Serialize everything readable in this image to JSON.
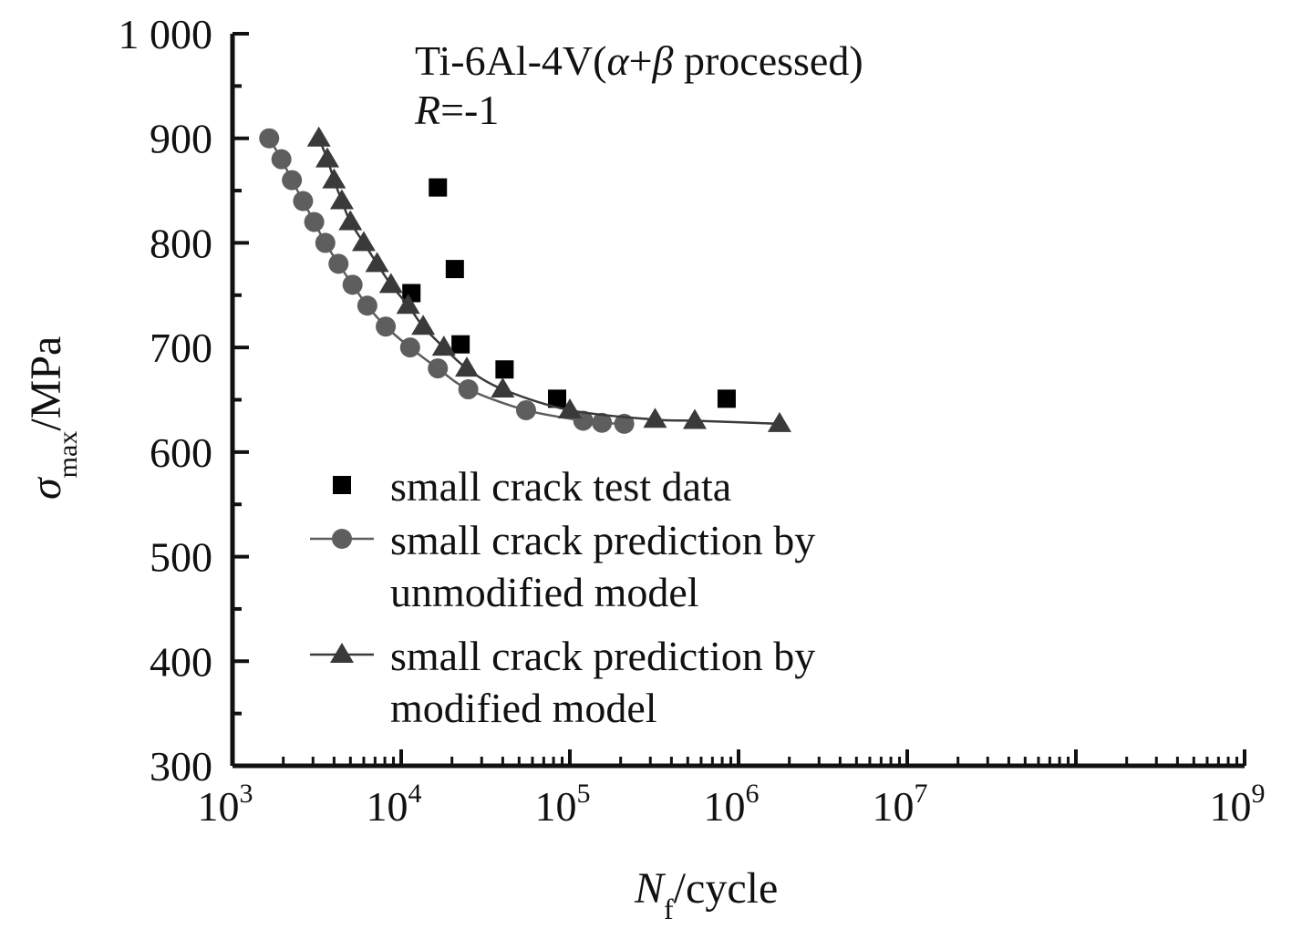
{
  "chart_data": {
    "type": "scatter",
    "title": "",
    "xlabel": {
      "main": "N",
      "sub": "f",
      "unit": "/cycle"
    },
    "ylabel": {
      "main": "σ",
      "sub": "max",
      "unit": "/MPa"
    },
    "xscale": "log",
    "xlim": [
      1000,
      1000000000
    ],
    "ylim": [
      300,
      1000
    ],
    "x_ticks": [
      {
        "base": "10",
        "exp": "3",
        "value": 1000
      },
      {
        "base": "10",
        "exp": "4",
        "value": 10000
      },
      {
        "base": "10",
        "exp": "5",
        "value": 100000
      },
      {
        "base": "10",
        "exp": "6",
        "value": 1000000
      },
      {
        "base": "10",
        "exp": "7",
        "value": 10000000
      },
      {
        "base": "10",
        "exp": "9",
        "value": 1000000000
      }
    ],
    "y_ticks": [
      {
        "label": "300",
        "value": 300
      },
      {
        "label": "400",
        "value": 400
      },
      {
        "label": "500",
        "value": 500
      },
      {
        "label": "600",
        "value": 600
      },
      {
        "label": "700",
        "value": 700
      },
      {
        "label": "800",
        "value": 800
      },
      {
        "label": "900",
        "value": 900
      },
      {
        "label": "1 000",
        "value": 1000
      }
    ],
    "annotations": {
      "material_prefix": "Ti-6Al-4V(",
      "alpha": "α",
      "plus": "+",
      "beta": "β",
      "material_suffix": " processed)",
      "ratio_symbol": "R",
      "ratio_value": "=-1"
    },
    "legend": {
      "position": "center-left",
      "entries": [
        {
          "lines": [
            "small crack test data"
          ],
          "marker": "square",
          "line": false
        },
        {
          "lines": [
            "small crack prediction by",
            "unmodified model"
          ],
          "marker": "circle",
          "line": true
        },
        {
          "lines": [
            "small crack prediction by",
            "modified model"
          ],
          "marker": "triangle",
          "line": true
        }
      ]
    },
    "series": [
      {
        "name": "small crack test data",
        "marker": "square",
        "color": "#000000",
        "points": [
          {
            "x": 11500,
            "y": 752
          },
          {
            "x": 16500,
            "y": 853
          },
          {
            "x": 20800,
            "y": 775
          },
          {
            "x": 22500,
            "y": 703
          },
          {
            "x": 41000,
            "y": 679
          },
          {
            "x": 84000,
            "y": 651
          },
          {
            "x": 850000,
            "y": 651
          }
        ]
      },
      {
        "name": "small crack prediction by unmodified model",
        "marker": "circle",
        "color": "#5e5e5e",
        "points": [
          {
            "x": 1650,
            "y": 900
          },
          {
            "x": 1950,
            "y": 880
          },
          {
            "x": 2250,
            "y": 860
          },
          {
            "x": 2620,
            "y": 840
          },
          {
            "x": 3050,
            "y": 820
          },
          {
            "x": 3550,
            "y": 800
          },
          {
            "x": 4250,
            "y": 780
          },
          {
            "x": 5150,
            "y": 760
          },
          {
            "x": 6300,
            "y": 740
          },
          {
            "x": 8100,
            "y": 720
          },
          {
            "x": 11300,
            "y": 700
          },
          {
            "x": 16500,
            "y": 680
          },
          {
            "x": 25000,
            "y": 660
          },
          {
            "x": 55000,
            "y": 640
          },
          {
            "x": 120000,
            "y": 630
          },
          {
            "x": 155000,
            "y": 628
          },
          {
            "x": 210000,
            "y": 627
          }
        ]
      },
      {
        "name": "small crack prediction by modified model",
        "marker": "triangle",
        "color": "#3a3a3a",
        "points": [
          {
            "x": 3250,
            "y": 900
          },
          {
            "x": 3650,
            "y": 880
          },
          {
            "x": 4000,
            "y": 860
          },
          {
            "x": 4450,
            "y": 840
          },
          {
            "x": 5000,
            "y": 820
          },
          {
            "x": 6000,
            "y": 800
          },
          {
            "x": 7200,
            "y": 780
          },
          {
            "x": 8700,
            "y": 760
          },
          {
            "x": 11000,
            "y": 740
          },
          {
            "x": 13500,
            "y": 720
          },
          {
            "x": 17900,
            "y": 700
          },
          {
            "x": 24500,
            "y": 680
          },
          {
            "x": 40000,
            "y": 660
          },
          {
            "x": 100000,
            "y": 640
          },
          {
            "x": 320000,
            "y": 631
          },
          {
            "x": 550000,
            "y": 630
          },
          {
            "x": 1750000,
            "y": 627
          }
        ]
      }
    ]
  }
}
